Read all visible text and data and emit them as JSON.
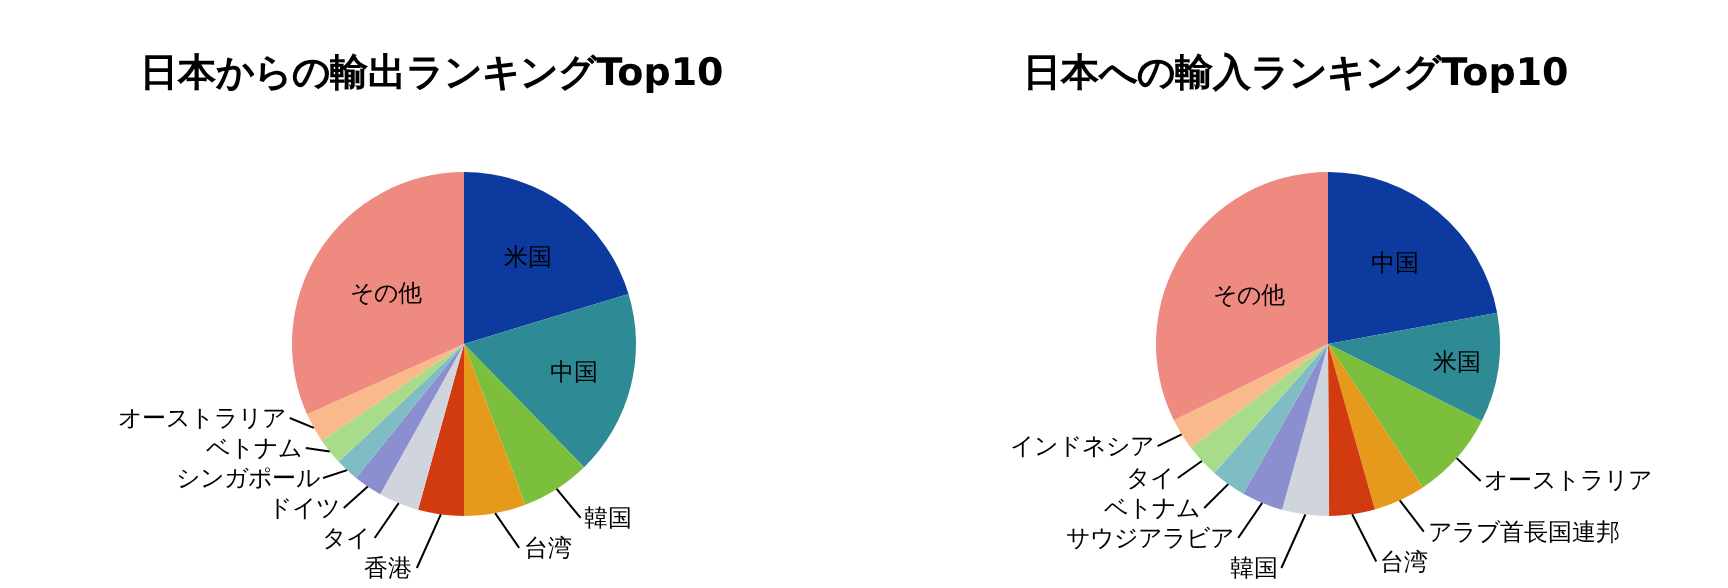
{
  "chart_data": [
    {
      "type": "pie",
      "title": "日本からの輸出ランキングTop10",
      "categories": [
        "米国",
        "中国",
        "韓国",
        "台湾",
        "香港",
        "タイ",
        "ドイツ",
        "シンガポール",
        "ベトナム",
        "オーストラリア",
        "その他"
      ],
      "values": [
        20.3,
        17.4,
        6.5,
        5.8,
        4.3,
        3.8,
        2.7,
        2.2,
        2.5,
        2.8,
        31.7
      ],
      "colors": [
        "#0d3a9e",
        "#2e8b96",
        "#7cbf3c",
        "#e59a1c",
        "#d23a10",
        "#d0d4dc",
        "#8b8fd0",
        "#7fbcc4",
        "#a8dc8a",
        "#f9b98a",
        "#ee8a80"
      ]
    },
    {
      "type": "pie",
      "title": "日本への輸入ランキングTop10",
      "categories": [
        "中国",
        "米国",
        "オーストラリア",
        "アラブ首長国連邦",
        "台湾",
        "韓国",
        "サウジアラビア",
        "ベトナム",
        "タイ",
        "インドネシア",
        "その他"
      ],
      "values": [
        22.1,
        10.3,
        8.3,
        4.9,
        4.3,
        4.4,
        3.9,
        3.3,
        3.2,
        3.0,
        32.3
      ],
      "colors": [
        "#0d3a9e",
        "#2e8b96",
        "#7cbf3c",
        "#e59a1c",
        "#d23a10",
        "#d0d4dc",
        "#8b8fd0",
        "#7fbcc4",
        "#a8dc8a",
        "#f9b98a",
        "#ee8a80"
      ]
    }
  ]
}
